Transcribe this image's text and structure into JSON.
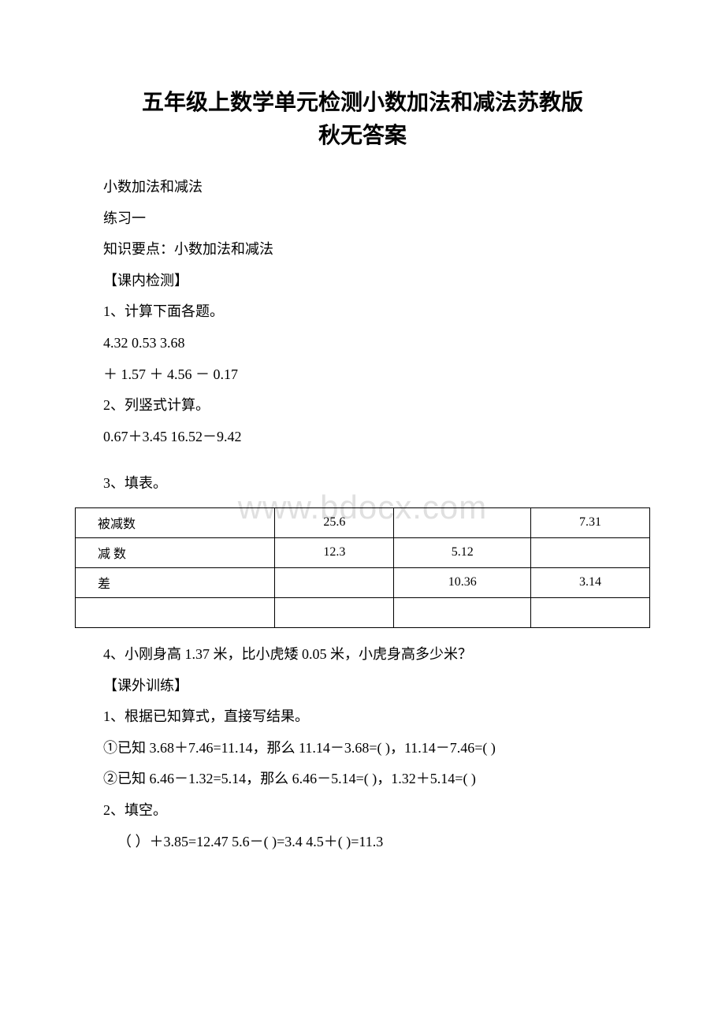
{
  "title": {
    "line1": "五年级上数学单元检测小数加法和减法苏教版",
    "line2": "秋无答案"
  },
  "watermark": "www.bdocx.com",
  "lines": {
    "p1": "小数加法和减法",
    "p2": "练习一",
    "p3": "知识要点：小数加法和减法",
    "p4": "【课内检测】",
    "p5": "1、计算下面各题。",
    "p6": "4.32 0.53 3.68",
    "p7": "＋ 1.57  ＋ 4.56  － 0.17",
    "p8": "2、列竖式计算。",
    "p9": "0.67＋3.45 16.52－9.42",
    "p10": "3、填表。",
    "p11": "4、小刚身高 1.37 米，比小虎矮 0.05 米，小虎身高多少米？",
    "p12": "【课外训练】",
    "p13": "1、根据已知算式，直接写结果。",
    "p14": "①已知 3.68＋7.46=11.14，那么 11.14－3.68=( )，11.14－7.46=( )",
    "p15": "②已知 6.46－1.32=5.14，那么 6.46－5.14=( )，1.32＋5.14=( )",
    "p16": "2、填空。",
    "p17": "（ ）＋3.85=12.47 5.6－( )=3.4 4.5＋( )=11.3"
  },
  "table": {
    "columns": 4,
    "header_col_width": "25%",
    "data_col_width": "25%",
    "border_color": "#000000",
    "background_color": "#ffffff",
    "rows": [
      {
        "label": "被减数",
        "c1": "25.6",
        "c2": "",
        "c3": "7.31"
      },
      {
        "label": "减  数",
        "c1": "12.3",
        "c2": "5.12",
        "c3": ""
      },
      {
        "label": "差",
        "c1": "",
        "c2": "10.36",
        "c3": "3.14"
      },
      {
        "label": "",
        "c1": "",
        "c2": "",
        "c3": ""
      }
    ]
  },
  "styles": {
    "page_background": "#ffffff",
    "text_color": "#000000",
    "watermark_color": "#e0e0e0",
    "title_fontsize": 28,
    "body_fontsize": 18,
    "table_fontsize": 16,
    "line_height": 2.2
  }
}
